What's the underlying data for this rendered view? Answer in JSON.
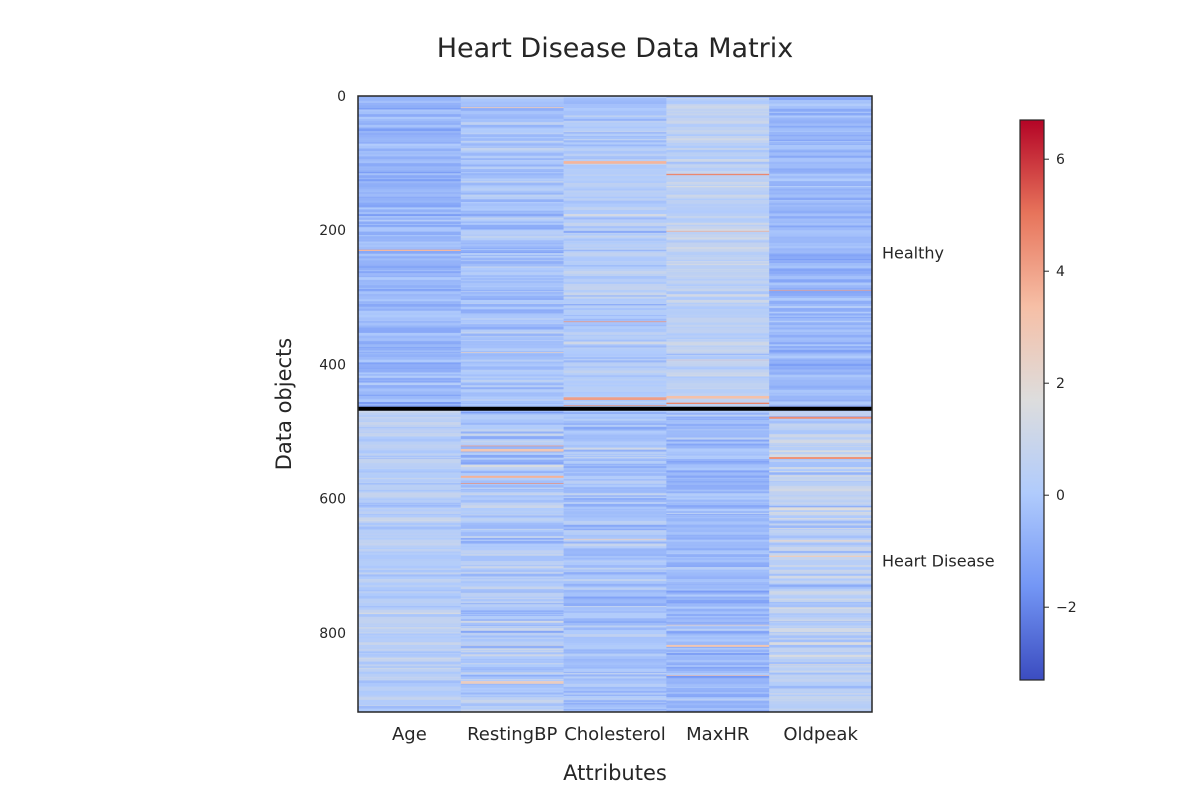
{
  "chart_data": {
    "type": "heatmap",
    "title": "Heart Disease Data Matrix",
    "xlabel": "Attributes",
    "ylabel": "Data objects",
    "columns": [
      "Age",
      "RestingBP",
      "Cholesterol",
      "MaxHR",
      "Oldpeak"
    ],
    "row_count": 918,
    "yticks": [
      0,
      200,
      400,
      600,
      800
    ],
    "group_boundary_row": 466,
    "groups": [
      {
        "label": "Healthy",
        "start": 0,
        "end": 466
      },
      {
        "label": "Heart Disease",
        "start": 466,
        "end": 918
      }
    ],
    "colorbar": {
      "min": -3.3,
      "max": 6.7,
      "ticks": [
        -2,
        0,
        2,
        4,
        6
      ],
      "colormap": "coolwarm",
      "colors": [
        "#3b4cc0",
        "#7396f5",
        "#b0cbfc",
        "#dddddd",
        "#f6bfa6",
        "#e7745b",
        "#b40426"
      ]
    },
    "column_profiles": [
      {
        "name": "Age",
        "healthy_mean": -0.6,
        "healthy_spread": 0.55,
        "disease_mean": 0.3,
        "disease_spread": 0.55
      },
      {
        "name": "RestingBP",
        "healthy_mean": -0.2,
        "healthy_spread": 0.6,
        "disease_mean": 0.05,
        "disease_spread": 0.75
      },
      {
        "name": "Cholesterol",
        "healthy_mean": 0.1,
        "healthy_spread": 0.6,
        "disease_mean": -0.25,
        "disease_spread": 0.7
      },
      {
        "name": "MaxHR",
        "healthy_mean": 0.5,
        "healthy_spread": 0.55,
        "disease_mean": -0.55,
        "disease_spread": 0.6
      },
      {
        "name": "Oldpeak",
        "healthy_mean": -0.6,
        "healthy_spread": 0.5,
        "disease_mean": 0.45,
        "disease_spread": 0.8
      }
    ]
  }
}
